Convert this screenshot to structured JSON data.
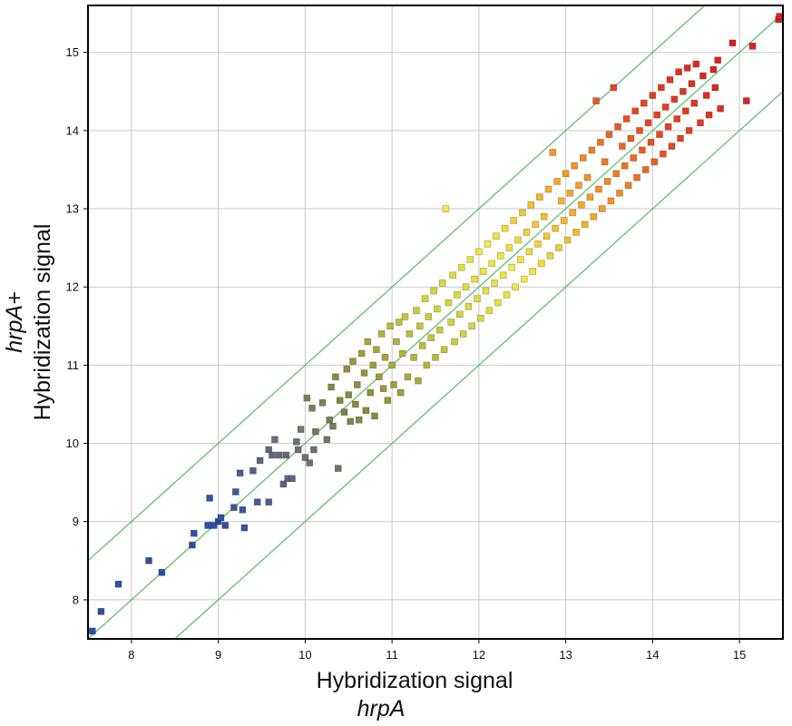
{
  "chart_data": {
    "type": "scatter",
    "title": "",
    "xlabel": "Hybridization signal",
    "xlabel_sub": "hrpA",
    "ylabel": "Hybridization signal",
    "ylabel_sub": "hrpA+",
    "xlim": [
      7.5,
      15.5
    ],
    "ylim": [
      7.5,
      15.6
    ],
    "x_ticks": [
      "8",
      "9",
      "10",
      "11",
      "12",
      "13",
      "14",
      "15"
    ],
    "y_ticks": [
      "8",
      "9",
      "10",
      "11",
      "12",
      "13",
      "14",
      "15"
    ],
    "grid": true,
    "legend": "none",
    "reference_lines": [
      {
        "name": "identity",
        "offset": 0
      },
      {
        "name": "upper-2x",
        "offset": 1
      },
      {
        "name": "lower-2x",
        "offset": -1
      }
    ],
    "line_color": "#5cc16b",
    "color_scale": [
      "#2e4fa3",
      "#6a6a7a",
      "#8c8c3a",
      "#c9cc3a",
      "#f2ea3c",
      "#f5a623",
      "#e8491f",
      "#d92121"
    ],
    "points": [
      [
        7.55,
        7.6
      ],
      [
        7.65,
        7.85
      ],
      [
        7.85,
        8.2
      ],
      [
        8.2,
        8.5
      ],
      [
        8.35,
        8.35
      ],
      [
        8.7,
        8.7
      ],
      [
        8.72,
        8.85
      ],
      [
        8.88,
        8.95
      ],
      [
        8.9,
        9.3
      ],
      [
        8.95,
        8.95
      ],
      [
        9.0,
        9.0
      ],
      [
        9.03,
        9.05
      ],
      [
        9.08,
        8.95
      ],
      [
        9.18,
        9.18
      ],
      [
        9.2,
        9.38
      ],
      [
        9.25,
        9.62
      ],
      [
        9.28,
        9.15
      ],
      [
        9.3,
        8.92
      ],
      [
        9.4,
        9.65
      ],
      [
        9.45,
        9.25
      ],
      [
        9.48,
        9.78
      ],
      [
        9.58,
        9.25
      ],
      [
        9.58,
        9.92
      ],
      [
        9.62,
        9.85
      ],
      [
        9.65,
        10.05
      ],
      [
        9.7,
        9.85
      ],
      [
        9.75,
        9.48
      ],
      [
        9.78,
        9.85
      ],
      [
        9.8,
        9.55
      ],
      [
        9.85,
        9.55
      ],
      [
        9.9,
        10.02
      ],
      [
        9.92,
        9.92
      ],
      [
        9.95,
        10.18
      ],
      [
        10.0,
        9.82
      ],
      [
        10.02,
        10.58
      ],
      [
        10.05,
        9.75
      ],
      [
        10.08,
        10.45
      ],
      [
        10.1,
        9.92
      ],
      [
        10.12,
        10.15
      ],
      [
        10.2,
        10.52
      ],
      [
        10.25,
        10.05
      ],
      [
        10.28,
        10.3
      ],
      [
        10.3,
        10.72
      ],
      [
        10.32,
        10.22
      ],
      [
        10.35,
        10.85
      ],
      [
        10.38,
        9.68
      ],
      [
        10.4,
        10.55
      ],
      [
        10.45,
        10.4
      ],
      [
        10.48,
        10.95
      ],
      [
        10.5,
        10.62
      ],
      [
        10.52,
        10.28
      ],
      [
        10.55,
        11.05
      ],
      [
        10.58,
        10.5
      ],
      [
        10.6,
        10.75
      ],
      [
        10.62,
        10.3
      ],
      [
        10.65,
        11.15
      ],
      [
        10.68,
        10.9
      ],
      [
        10.7,
        10.42
      ],
      [
        10.72,
        11.3
      ],
      [
        10.75,
        10.65
      ],
      [
        10.78,
        11.0
      ],
      [
        10.8,
        10.35
      ],
      [
        10.82,
        11.2
      ],
      [
        10.85,
        10.85
      ],
      [
        10.88,
        11.4
      ],
      [
        10.9,
        10.7
      ],
      [
        10.92,
        11.1
      ],
      [
        10.95,
        10.55
      ],
      [
        10.98,
        11.5
      ],
      [
        11.0,
        11.0
      ],
      [
        11.02,
        10.75
      ],
      [
        11.05,
        11.3
      ],
      [
        11.08,
        11.55
      ],
      [
        11.1,
        10.65
      ],
      [
        11.12,
        11.15
      ],
      [
        11.15,
        11.62
      ],
      [
        11.18,
        10.85
      ],
      [
        11.2,
        11.4
      ],
      [
        11.25,
        11.1
      ],
      [
        11.28,
        11.7
      ],
      [
        11.3,
        10.8
      ],
      [
        11.32,
        11.5
      ],
      [
        11.35,
        11.25
      ],
      [
        11.38,
        11.85
      ],
      [
        11.4,
        11.0
      ],
      [
        11.42,
        11.62
      ],
      [
        11.45,
        11.35
      ],
      [
        11.48,
        11.95
      ],
      [
        11.5,
        11.1
      ],
      [
        11.52,
        11.72
      ],
      [
        11.55,
        11.45
      ],
      [
        11.58,
        12.05
      ],
      [
        11.6,
        11.2
      ],
      [
        11.62,
        13.0
      ],
      [
        11.65,
        11.8
      ],
      [
        11.68,
        11.55
      ],
      [
        11.7,
        12.15
      ],
      [
        11.72,
        11.3
      ],
      [
        11.75,
        11.9
      ],
      [
        11.78,
        11.65
      ],
      [
        11.8,
        12.25
      ],
      [
        11.82,
        11.4
      ],
      [
        11.85,
        12.0
      ],
      [
        11.88,
        11.75
      ],
      [
        11.9,
        12.35
      ],
      [
        11.92,
        11.5
      ],
      [
        11.95,
        12.1
      ],
      [
        11.98,
        11.85
      ],
      [
        12.0,
        12.45
      ],
      [
        12.02,
        11.6
      ],
      [
        12.05,
        12.2
      ],
      [
        12.08,
        11.95
      ],
      [
        12.1,
        12.55
      ],
      [
        12.12,
        11.7
      ],
      [
        12.15,
        12.3
      ],
      [
        12.18,
        12.05
      ],
      [
        12.2,
        12.65
      ],
      [
        12.22,
        11.8
      ],
      [
        12.25,
        12.4
      ],
      [
        12.28,
        12.15
      ],
      [
        12.3,
        12.75
      ],
      [
        12.32,
        11.9
      ],
      [
        12.35,
        12.5
      ],
      [
        12.38,
        12.25
      ],
      [
        12.4,
        12.85
      ],
      [
        12.42,
        12.0
      ],
      [
        12.45,
        12.6
      ],
      [
        12.48,
        12.35
      ],
      [
        12.5,
        12.95
      ],
      [
        12.52,
        12.1
      ],
      [
        12.55,
        12.7
      ],
      [
        12.58,
        12.45
      ],
      [
        12.6,
        13.05
      ],
      [
        12.62,
        12.2
      ],
      [
        12.65,
        12.8
      ],
      [
        12.68,
        12.55
      ],
      [
        12.7,
        13.15
      ],
      [
        12.72,
        12.3
      ],
      [
        12.75,
        12.9
      ],
      [
        12.78,
        12.65
      ],
      [
        12.8,
        13.25
      ],
      [
        12.82,
        12.4
      ],
      [
        12.85,
        13.72
      ],
      [
        12.88,
        12.75
      ],
      [
        12.9,
        13.35
      ],
      [
        12.92,
        12.5
      ],
      [
        12.95,
        13.1
      ],
      [
        12.98,
        12.85
      ],
      [
        13.0,
        13.45
      ],
      [
        13.02,
        12.6
      ],
      [
        13.05,
        13.2
      ],
      [
        13.08,
        12.95
      ],
      [
        13.1,
        13.55
      ],
      [
        13.12,
        12.7
      ],
      [
        13.15,
        13.3
      ],
      [
        13.18,
        13.05
      ],
      [
        13.2,
        13.65
      ],
      [
        13.22,
        12.8
      ],
      [
        13.25,
        13.4
      ],
      [
        13.28,
        13.15
      ],
      [
        13.3,
        13.75
      ],
      [
        13.32,
        12.9
      ],
      [
        13.35,
        14.38
      ],
      [
        13.38,
        13.25
      ],
      [
        13.4,
        13.85
      ],
      [
        13.42,
        13.0
      ],
      [
        13.45,
        13.6
      ],
      [
        13.48,
        13.35
      ],
      [
        13.5,
        13.95
      ],
      [
        13.52,
        13.1
      ],
      [
        13.55,
        14.55
      ],
      [
        13.58,
        13.45
      ],
      [
        13.6,
        14.05
      ],
      [
        13.62,
        13.2
      ],
      [
        13.65,
        13.8
      ],
      [
        13.68,
        13.55
      ],
      [
        13.7,
        14.15
      ],
      [
        13.72,
        13.3
      ],
      [
        13.75,
        13.9
      ],
      [
        13.78,
        13.65
      ],
      [
        13.8,
        14.25
      ],
      [
        13.82,
        13.4
      ],
      [
        13.85,
        14.0
      ],
      [
        13.88,
        13.75
      ],
      [
        13.9,
        14.35
      ],
      [
        13.92,
        13.5
      ],
      [
        13.95,
        14.1
      ],
      [
        13.98,
        13.85
      ],
      [
        14.0,
        14.45
      ],
      [
        14.02,
        13.6
      ],
      [
        14.05,
        14.2
      ],
      [
        14.08,
        13.95
      ],
      [
        14.1,
        14.55
      ],
      [
        14.12,
        13.7
      ],
      [
        14.15,
        14.3
      ],
      [
        14.18,
        14.05
      ],
      [
        14.2,
        14.65
      ],
      [
        14.22,
        13.8
      ],
      [
        14.25,
        14.4
      ],
      [
        14.28,
        14.15
      ],
      [
        14.3,
        14.75
      ],
      [
        14.32,
        13.9
      ],
      [
        14.35,
        14.5
      ],
      [
        14.38,
        14.25
      ],
      [
        14.4,
        14.8
      ],
      [
        14.42,
        14.0
      ],
      [
        14.45,
        14.6
      ],
      [
        14.48,
        14.35
      ],
      [
        14.5,
        14.85
      ],
      [
        14.55,
        14.1
      ],
      [
        14.58,
        14.7
      ],
      [
        14.62,
        14.45
      ],
      [
        14.65,
        14.2
      ],
      [
        14.7,
        14.78
      ],
      [
        14.72,
        14.55
      ],
      [
        14.75,
        14.9
      ],
      [
        14.78,
        14.28
      ],
      [
        14.92,
        15.12
      ],
      [
        15.08,
        14.38
      ],
      [
        15.15,
        15.08
      ],
      [
        15.45,
        15.42
      ],
      [
        15.46,
        15.46
      ]
    ]
  }
}
